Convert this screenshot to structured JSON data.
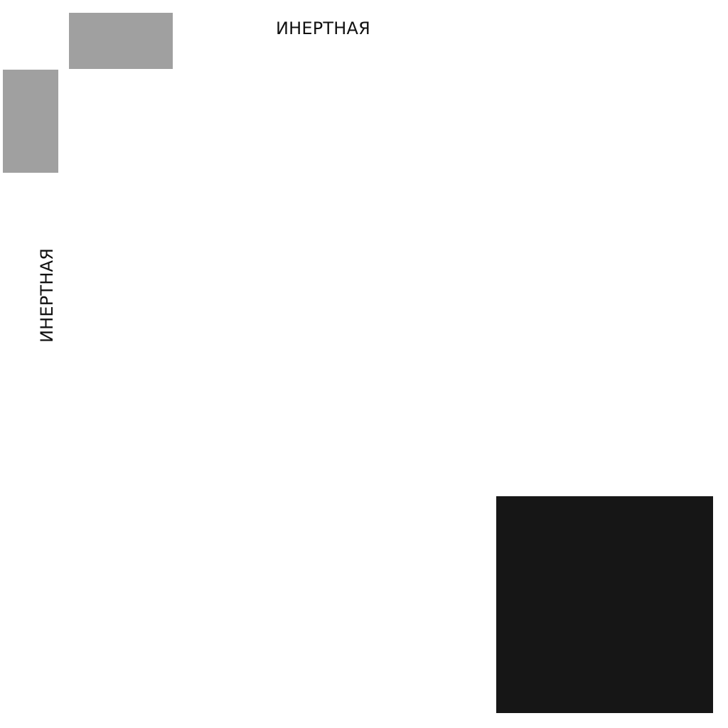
{
  "labels": {
    "top": "ИНЕРТНАЯ",
    "left": "ИНЕРТНАЯ"
  },
  "colors": {
    "background": "#ffffff",
    "grey_block": "#a0a0a0",
    "dark_block": "#161616",
    "text": "#111111"
  }
}
